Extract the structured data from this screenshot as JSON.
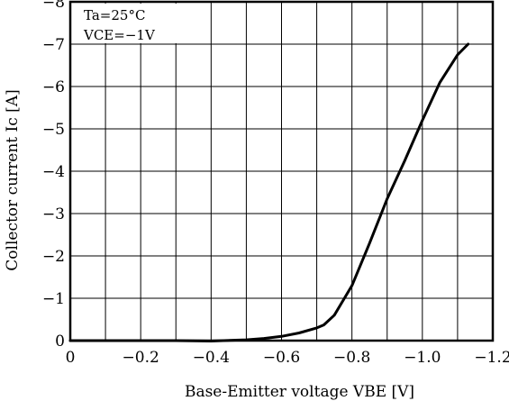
{
  "chart_data": {
    "type": "line",
    "xlabel": "Base-Emitter voltage VBE [V]",
    "ylabel": "Collector current Ic [A]",
    "xlim": [
      0,
      -1.2
    ],
    "ylim": [
      0,
      -8
    ],
    "x_ticks": [
      "0",
      "−0.2",
      "−0.4",
      "−0.6",
      "−0.8",
      "−1.0",
      "−1.2"
    ],
    "y_ticks": [
      "0",
      "−1",
      "−2",
      "−3",
      "−4",
      "−5",
      "−6",
      "−7",
      "−8"
    ],
    "grid": true,
    "annotations": [
      "Ta=25°C",
      "VCE=−1V"
    ],
    "series": [
      {
        "x": [
          0,
          -0.1,
          -0.2,
          -0.3,
          -0.4,
          -0.5,
          -0.55,
          -0.6,
          -0.65,
          -0.7,
          -0.72,
          -0.75,
          -0.8,
          -0.85,
          -0.9,
          -0.95,
          -1.0,
          -1.05,
          -1.1,
          -1.13
        ],
        "y": [
          0,
          0,
          0,
          0,
          0.01,
          -0.02,
          -0.05,
          -0.1,
          -0.18,
          -0.3,
          -0.37,
          -0.6,
          -1.3,
          -2.3,
          -3.35,
          -4.25,
          -5.2,
          -6.1,
          -6.75,
          -7.0
        ]
      }
    ]
  }
}
